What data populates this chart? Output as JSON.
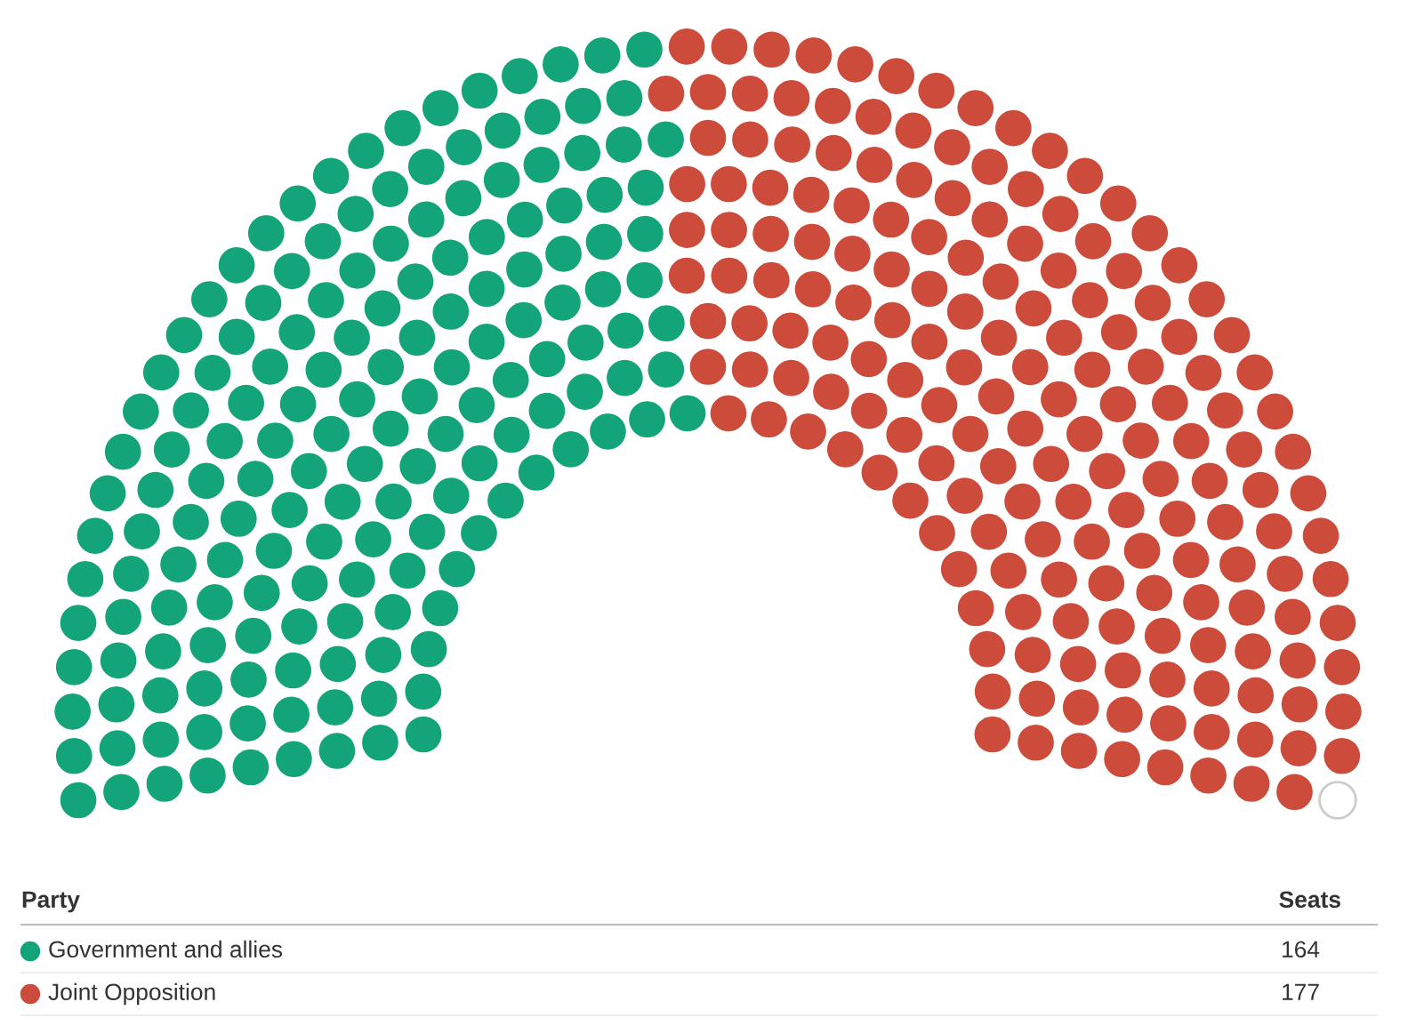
{
  "chart_data": {
    "type": "other",
    "categories": [
      "Government and allies",
      "Joint Opposition"
    ],
    "values": [
      164,
      177
    ],
    "colors": [
      "#13a47a",
      "#cc4b3a"
    ],
    "legend_title": "Party",
    "annotations": [
      "Seats"
    ],
    "data_labels": true
  }
}
